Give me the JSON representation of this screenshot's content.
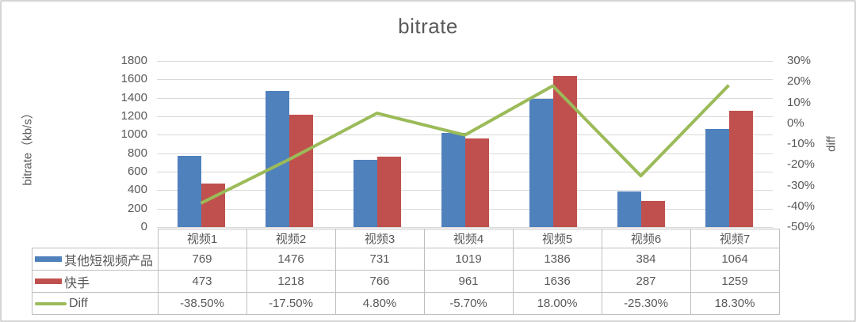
{
  "title": "bitrate",
  "left_axis": {
    "title": "bitrate（kb/s）",
    "min": 0,
    "max": 1800,
    "ticks": [
      "1800",
      "1600",
      "1400",
      "1200",
      "1000",
      "800",
      "600",
      "400",
      "200",
      "0"
    ]
  },
  "right_axis": {
    "title": "diff",
    "min": -0.5,
    "max": 0.3,
    "ticks": [
      "30%",
      "20%",
      "10%",
      "0%",
      "-10%",
      "-20%",
      "-30%",
      "-40%",
      "-50%"
    ]
  },
  "colors": {
    "bar_series_1": "#4F81BD",
    "bar_series_2": "#C0504D",
    "line_series": "#9BBB59",
    "text": "#595959",
    "gridline": "#D9D9D9",
    "table_border": "#BFBFBF",
    "frame_border": "#D5D5D5"
  },
  "chart_data": {
    "type": "combo-bar-line",
    "title": "bitrate",
    "xlabel": "",
    "ylabel_left": "bitrate（kb/s）",
    "ylabel_right": "diff",
    "ylim_left": [
      0,
      1800
    ],
    "ylim_right": [
      -0.5,
      0.3
    ],
    "grid": true,
    "legend_position": "table-left-column",
    "categories": [
      "视频1",
      "视频2",
      "视频3",
      "视频4",
      "视频5",
      "视频6",
      "视频7"
    ],
    "series": [
      {
        "name": "其他短视频产品",
        "type": "bar",
        "axis": "left",
        "color": "#4F81BD",
        "values": [
          769,
          1476,
          731,
          1019,
          1386,
          384,
          1064
        ],
        "labels": [
          "769",
          "1476",
          "731",
          "1019",
          "1386",
          "384",
          "1064"
        ]
      },
      {
        "name": "快手",
        "type": "bar",
        "axis": "left",
        "color": "#C0504D",
        "values": [
          473,
          1218,
          766,
          961,
          1636,
          287,
          1259
        ],
        "labels": [
          "473",
          "1218",
          "766",
          "961",
          "1636",
          "287",
          "1259"
        ]
      },
      {
        "name": "Diff",
        "type": "line",
        "axis": "right",
        "color": "#9BBB59",
        "values": [
          -0.385,
          -0.175,
          0.048,
          -0.057,
          0.18,
          -0.253,
          0.183
        ],
        "labels": [
          "-38.50%",
          "-17.50%",
          "4.80%",
          "-5.70%",
          "18.00%",
          "-25.30%",
          "18.30%"
        ]
      }
    ]
  }
}
